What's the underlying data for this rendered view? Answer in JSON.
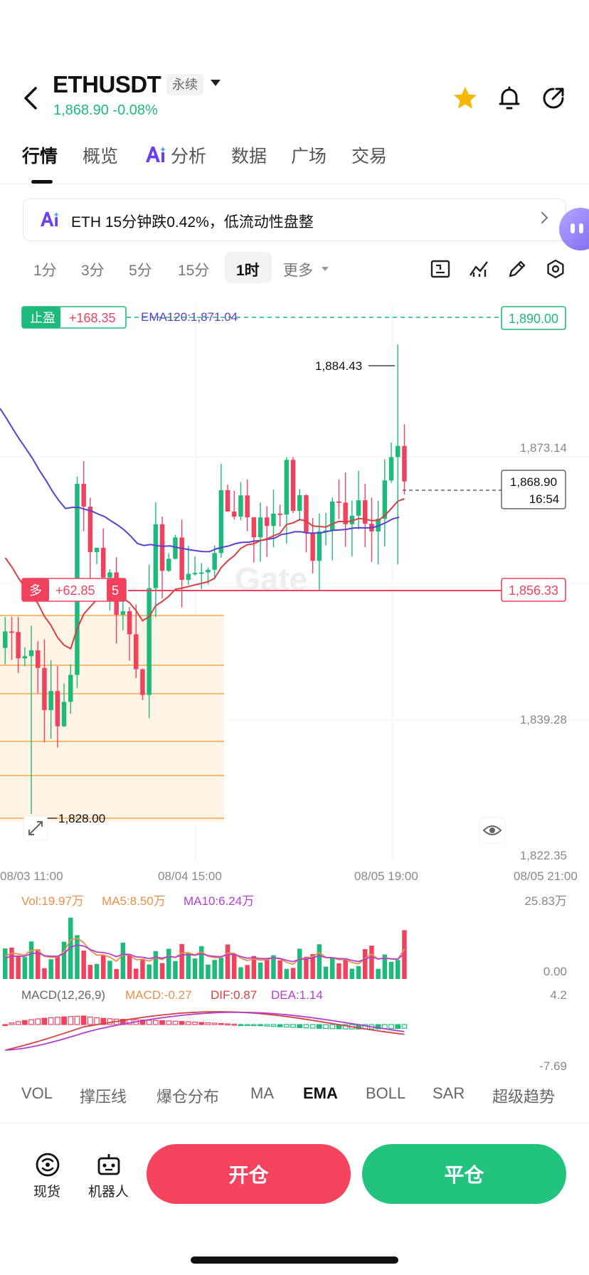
{
  "header": {
    "pair": "ETHUSDT",
    "badge": "永续",
    "price_line": "1,868.90 -0.08%"
  },
  "tabs": [
    {
      "label": "行情",
      "active": true
    },
    {
      "label": "概览"
    },
    {
      "label": "分析",
      "ai": true
    },
    {
      "label": "数据"
    },
    {
      "label": "广场"
    },
    {
      "label": "交易"
    }
  ],
  "banner": {
    "text": "ETH 15分钟跌0.42%，低流动性盘整"
  },
  "timeframes": [
    {
      "label": "1分"
    },
    {
      "label": "3分"
    },
    {
      "label": "5分"
    },
    {
      "label": "15分"
    },
    {
      "label": "1时",
      "active": true
    },
    {
      "label": "更多"
    }
  ],
  "chart_data": {
    "type": "candlestick",
    "ema_label": "EMA120:1,871.04",
    "y_ticks": [
      "1,873.14",
      "1,839.28",
      "1,822.35"
    ],
    "x_ticks": [
      "08/03 11:00",
      "08/04 15:00",
      "08/05 19:00",
      "08/05 21:00"
    ],
    "high_label": "1,884.43",
    "low_label": "1,828.00",
    "current_price": "1,868.90",
    "countdown": "16:54",
    "take_profit": {
      "tag": "止盈",
      "pnl": "+168.35",
      "price": "1,890.00"
    },
    "position": {
      "side": "多",
      "pnl": "+62.85",
      "leverage": "5",
      "price": "1,856.33"
    },
    "price_range": [
      1822.35,
      1890.0
    ],
    "watermark": "Gate",
    "volume": {
      "labels": {
        "vol": "Vol:19.97万",
        "ma5": "MA5:8.50万",
        "ma10": "MA10:6.24万"
      },
      "max": "25.83万",
      "min": "0.00"
    },
    "macd": {
      "labels": {
        "name": "MACD(12,26,9)",
        "macd": "MACD:-0.27",
        "dif": "DIF:0.87",
        "dea": "DEA:1.14"
      },
      "max": "4.2",
      "min": "-7.69"
    },
    "colors": {
      "up": "#1dba7c",
      "down": "#f0425f",
      "ema": "#5b3fd0",
      "ma": "#e8904a",
      "purple": "#b33fd0"
    }
  },
  "indicators": [
    {
      "label": "VOL"
    },
    {
      "label": "撑压线"
    },
    {
      "label": "爆仓分布"
    },
    {
      "label": "MA"
    },
    {
      "label": "EMA",
      "active": true
    },
    {
      "label": "BOLL"
    },
    {
      "label": "SAR"
    },
    {
      "label": "超级趋势"
    }
  ],
  "bottom": {
    "spot_label": "现货",
    "bot_label": "机器人",
    "open_label": "开仓",
    "close_label": "平仓"
  }
}
